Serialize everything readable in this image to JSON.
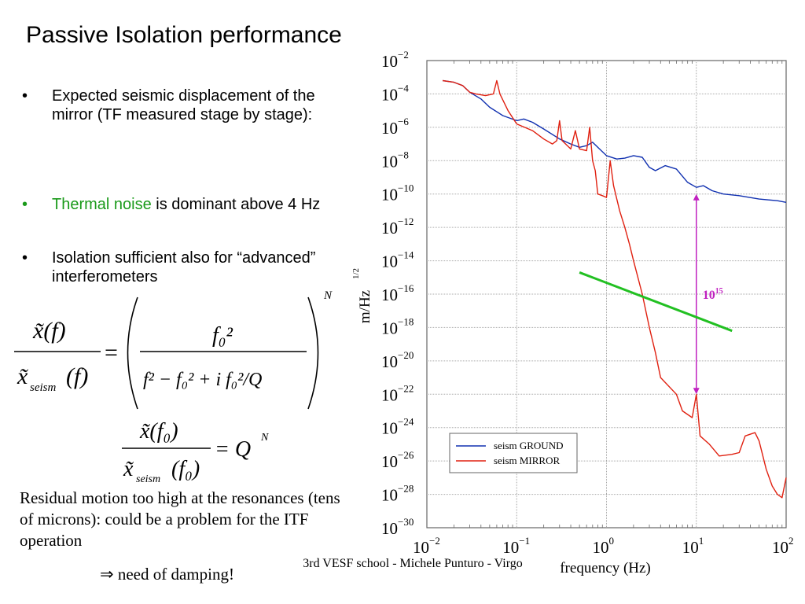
{
  "slide": {
    "title": "Passive Isolation performance",
    "bullets": [
      {
        "text": "Expected seismic displacement of the mirror (TF measured stage by stage):",
        "bullet": "•"
      },
      {
        "highlight": "Thermal noise",
        "text": " is dominant above 4 Hz",
        "bullet": "•",
        "highlight_color": "#1a9a1a"
      },
      {
        "text": "Isolation sufficient also for “advanced” interferometers",
        "bullet": "•"
      }
    ],
    "formula1": {
      "lhs_num": "x̃(f)",
      "lhs_den_x": "x̃",
      "lhs_den_sub": "seism",
      "lhs_den_arg": "(f)",
      "eq": "=",
      "rhs_num": "f₀²",
      "rhs_den": "f² − f₀² + i f₀²/Q",
      "exponent": "N"
    },
    "formula2": {
      "num": "x̃(f₀)",
      "den_x": "x̃",
      "den_sub": "seism",
      "den_arg": "(f₀)",
      "rhs": "= Q",
      "exponent": "N"
    },
    "residual_text": "Residual motion too high at the resonances (tens of microns): could be a problem for the ITF operation",
    "damping_text": "⇒ need of damping!",
    "footer": "3rd VESF school - Michele Punturo - Virgo"
  },
  "chart_data": {
    "type": "line",
    "xscale": "log",
    "yscale": "log",
    "xlabel": "frequency (Hz)",
    "ylabel": "m/Hz^1/2",
    "xlim": [
      0.01,
      100
    ],
    "ylim": [
      1e-30,
      0.01
    ],
    "x_ticks": [
      "10^-2",
      "10^-1",
      "10^0",
      "10^1",
      "10^2"
    ],
    "y_ticks": [
      "10^-2",
      "10^-4",
      "10^-6",
      "10^-8",
      "10^-10",
      "10^-12",
      "10^-14",
      "10^-16",
      "10^-18",
      "10^-20",
      "10^-22",
      "10^-24",
      "10^-26",
      "10^-28",
      "10^-30"
    ],
    "grid": true,
    "legend": {
      "placement": "lower-left",
      "entries": [
        "seism GROUND",
        "seism MIRROR"
      ]
    },
    "series": [
      {
        "name": "seism GROUND",
        "color": "#1030b0",
        "points": [
          [
            0.015,
            -3.2
          ],
          [
            0.02,
            -3.3
          ],
          [
            0.025,
            -3.5
          ],
          [
            0.03,
            -3.9
          ],
          [
            0.04,
            -4.3
          ],
          [
            0.05,
            -4.8
          ],
          [
            0.07,
            -5.3
          ],
          [
            0.1,
            -5.6
          ],
          [
            0.12,
            -5.5
          ],
          [
            0.15,
            -5.7
          ],
          [
            0.2,
            -6.1
          ],
          [
            0.3,
            -6.7
          ],
          [
            0.4,
            -7.0
          ],
          [
            0.5,
            -7.2
          ],
          [
            0.6,
            -7.1
          ],
          [
            0.7,
            -6.9
          ],
          [
            0.8,
            -7.2
          ],
          [
            1.0,
            -7.7
          ],
          [
            1.3,
            -7.9
          ],
          [
            1.6,
            -7.85
          ],
          [
            2.0,
            -7.7
          ],
          [
            2.5,
            -7.8
          ],
          [
            3.0,
            -8.4
          ],
          [
            3.5,
            -8.6
          ],
          [
            4.5,
            -8.3
          ],
          [
            6,
            -8.5
          ],
          [
            8,
            -9.3
          ],
          [
            10,
            -9.6
          ],
          [
            12,
            -9.5
          ],
          [
            15,
            -9.8
          ],
          [
            20,
            -10.0
          ],
          [
            30,
            -10.1
          ],
          [
            50,
            -10.3
          ],
          [
            80,
            -10.4
          ],
          [
            100,
            -10.5
          ]
        ]
      },
      {
        "name": "seism MIRROR",
        "color": "#e02010",
        "points": [
          [
            0.015,
            -3.2
          ],
          [
            0.02,
            -3.3
          ],
          [
            0.025,
            -3.5
          ],
          [
            0.03,
            -3.9
          ],
          [
            0.035,
            -4.0
          ],
          [
            0.045,
            -4.1
          ],
          [
            0.055,
            -4.0
          ],
          [
            0.06,
            -3.2
          ],
          [
            0.065,
            -4.0
          ],
          [
            0.08,
            -5.0
          ],
          [
            0.1,
            -5.8
          ],
          [
            0.15,
            -6.2
          ],
          [
            0.2,
            -6.7
          ],
          [
            0.25,
            -7.0
          ],
          [
            0.28,
            -6.8
          ],
          [
            0.3,
            -5.6
          ],
          [
            0.32,
            -6.8
          ],
          [
            0.4,
            -7.3
          ],
          [
            0.45,
            -6.2
          ],
          [
            0.5,
            -7.3
          ],
          [
            0.6,
            -7.4
          ],
          [
            0.65,
            -6.0
          ],
          [
            0.7,
            -8.0
          ],
          [
            0.75,
            -8.6
          ],
          [
            0.8,
            -10.0
          ],
          [
            0.9,
            -10.1
          ],
          [
            1.0,
            -10.2
          ],
          [
            1.1,
            -8.0
          ],
          [
            1.2,
            -9.5
          ],
          [
            1.4,
            -11.0
          ],
          [
            1.6,
            -12.0
          ],
          [
            1.8,
            -13.0
          ],
          [
            2.0,
            -14.0
          ],
          [
            2.5,
            -16.0
          ],
          [
            3,
            -18.0
          ],
          [
            3.5,
            -19.5
          ],
          [
            4,
            -21.0
          ],
          [
            6,
            -22.0
          ],
          [
            7,
            -23.0
          ],
          [
            9,
            -23.4
          ],
          [
            10,
            -22.0
          ],
          [
            11,
            -24.5
          ],
          [
            14,
            -25.0
          ],
          [
            18,
            -25.7
          ],
          [
            25,
            -25.6
          ],
          [
            30,
            -25.5
          ],
          [
            35,
            -24.5
          ],
          [
            45,
            -24.3
          ],
          [
            50,
            -24.8
          ],
          [
            60,
            -26.5
          ],
          [
            70,
            -27.5
          ],
          [
            80,
            -28.0
          ],
          [
            90,
            -28.2
          ],
          [
            100,
            -27.0
          ]
        ]
      }
    ],
    "annotations": [
      {
        "type": "arrow",
        "label": "10^15",
        "color": "#c020c0",
        "x": 10,
        "y_from": -10,
        "y_to": -22
      },
      {
        "type": "line",
        "label": "thermal noise",
        "color": "#22c022",
        "from": [
          0.5,
          -14.7
        ],
        "to": [
          25,
          -18.2
        ]
      }
    ]
  }
}
